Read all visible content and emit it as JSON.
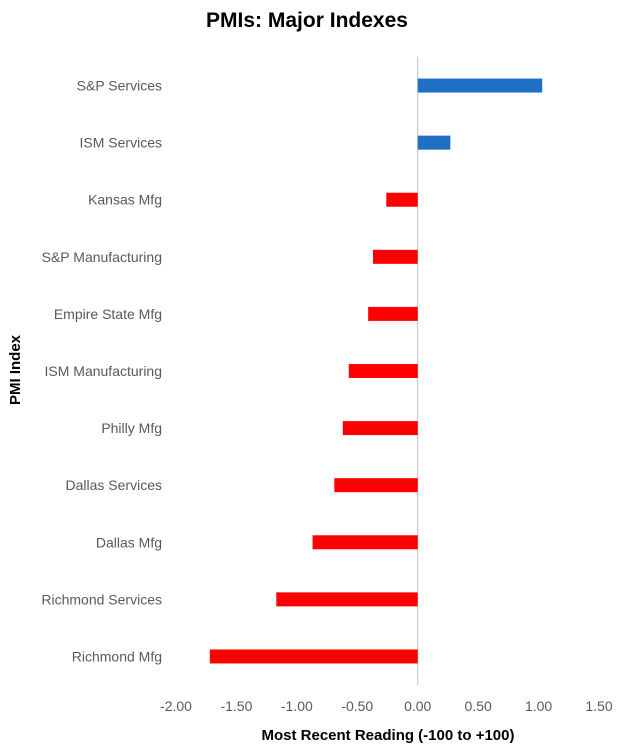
{
  "chart_data": {
    "type": "bar",
    "orientation": "horizontal",
    "title": "PMIs: Major Indexes",
    "xlabel": "Most Recent Reading (-100 to +100)",
    "ylabel": "PMI Index",
    "categories": [
      "S&P Services",
      "ISM Services",
      "Kansas Mfg",
      "S&P Manufacturing",
      "Empire State Mfg",
      "ISM Manufacturing",
      "Philly Mfg",
      "Dallas Services",
      "Dallas Mfg",
      "Richmond Services",
      "Richmond Mfg"
    ],
    "values": [
      1.03,
      0.27,
      -0.26,
      -0.37,
      -0.41,
      -0.57,
      -0.62,
      -0.69,
      -0.87,
      -1.17,
      -1.72
    ],
    "xlim": [
      -2.0,
      1.5
    ],
    "xticks": [
      "-2.00",
      "-1.50",
      "-1.00",
      "-0.50",
      "0.00",
      "0.50",
      "1.00",
      "1.50"
    ],
    "xtick_values": [
      -2.0,
      -1.5,
      -1.0,
      -0.5,
      0.0,
      0.5,
      1.0,
      1.5
    ],
    "grid": false,
    "legend": "none",
    "colors": {
      "positive": "#1F6FC5",
      "negative": "#FF0000",
      "zero_line": "#BFBFBF"
    }
  }
}
